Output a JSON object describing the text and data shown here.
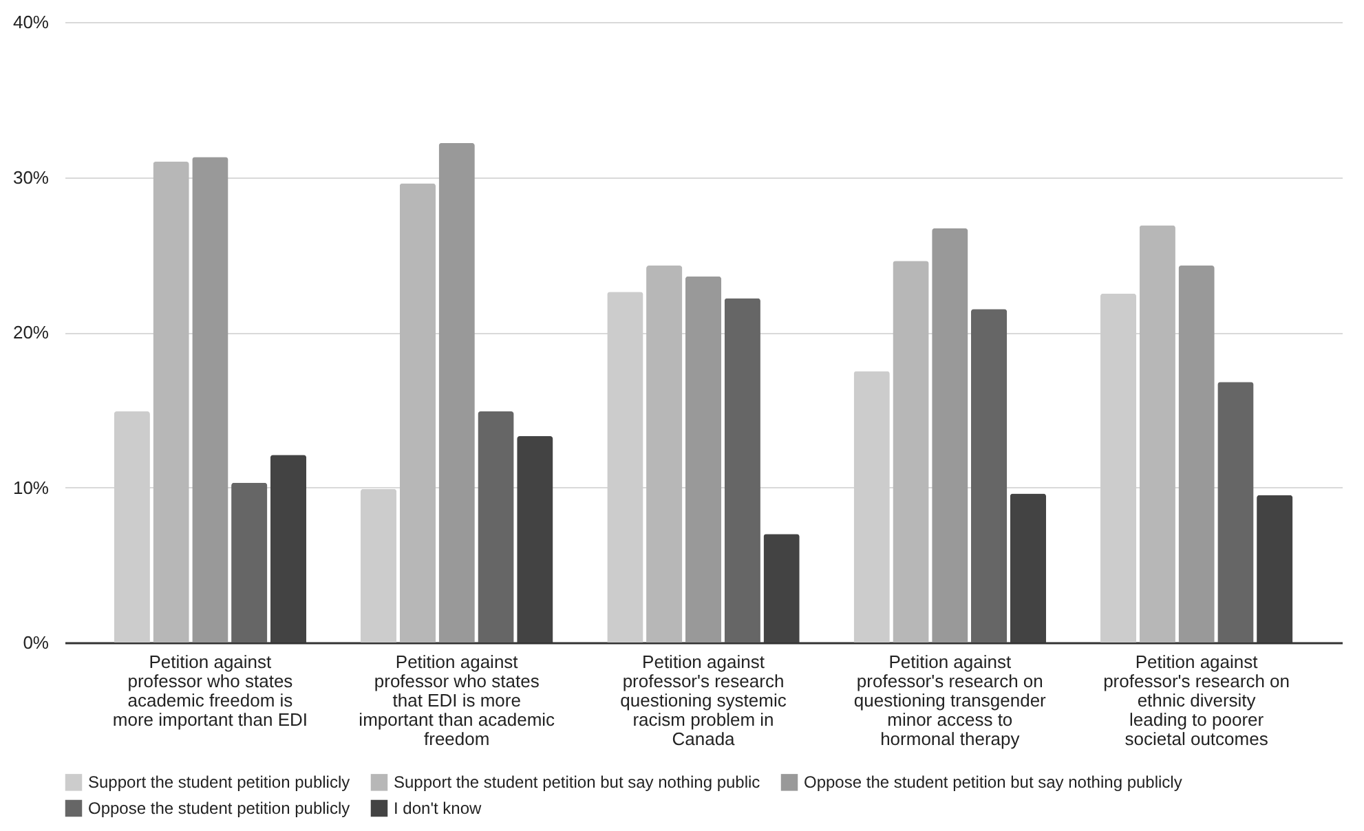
{
  "chart_data": {
    "type": "bar",
    "categories": [
      "Petition against professor who states academic freedom is more important than EDI",
      "Petition against professor who states that EDI is more important than academic freedom",
      "Petition against professor's research questioning systemic racism problem in Canada",
      "Petition against professor's research on questioning transgender minor access to hormonal therapy",
      "Petition against professor's research on ethnic diversity leading to poorer societal outcomes"
    ],
    "series": [
      {
        "name": "Support the student petition publicly",
        "color": "#cccccc",
        "values": [
          14.9,
          9.9,
          22.6,
          17.5,
          22.5
        ]
      },
      {
        "name": "Support the student petition but say nothing public",
        "color": "#b7b7b7",
        "values": [
          31.0,
          29.6,
          24.3,
          24.6,
          26.9
        ]
      },
      {
        "name": "Oppose the student petition but say nothing publicly",
        "color": "#999999",
        "values": [
          31.3,
          32.2,
          23.6,
          26.7,
          24.3
        ]
      },
      {
        "name": "Oppose the student petition publicly",
        "color": "#666666",
        "values": [
          10.3,
          14.9,
          22.2,
          21.5,
          16.8
        ]
      },
      {
        "name": "I don't know",
        "color": "#434343",
        "values": [
          12.1,
          13.3,
          7.0,
          9.6,
          9.5
        ]
      }
    ],
    "ylim": [
      0,
      40
    ],
    "yticks": [
      {
        "value": 0,
        "label": "0%"
      },
      {
        "value": 10,
        "label": "10%"
      },
      {
        "value": 20,
        "label": "20%"
      },
      {
        "value": 30,
        "label": "30%"
      },
      {
        "value": 40,
        "label": "40%"
      }
    ],
    "grid": "y",
    "legend": "bottom"
  }
}
